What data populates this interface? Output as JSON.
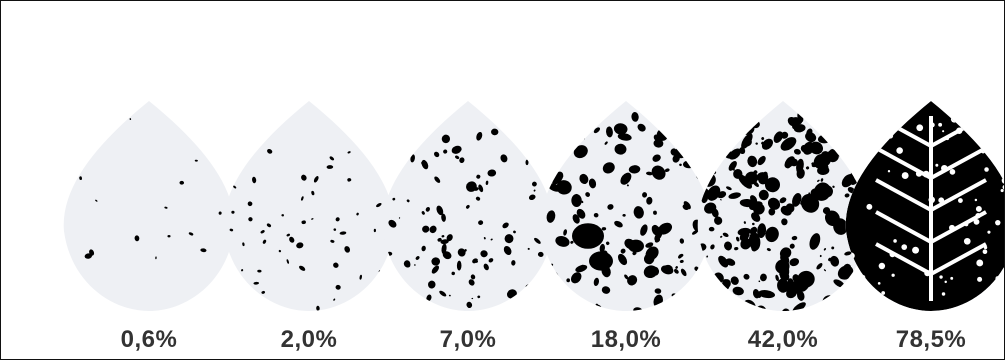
{
  "figure": {
    "leaves": [
      {
        "label": "0,6%",
        "severity": 0.006
      },
      {
        "label": "2,0%",
        "severity": 0.02
      },
      {
        "label": "7,0%",
        "severity": 0.07
      },
      {
        "label": "18,0%",
        "severity": 0.18
      },
      {
        "label": "42,0%",
        "severity": 0.42
      },
      {
        "label": "78,5%",
        "severity": 0.785
      }
    ],
    "colors": {
      "leaf_fill": "#eef0f4",
      "lesion": "#000000",
      "label": "#333333",
      "border": "#111111"
    }
  }
}
